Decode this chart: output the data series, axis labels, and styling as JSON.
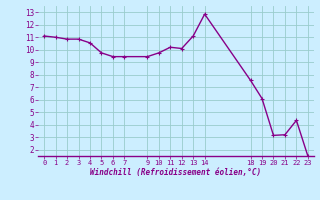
{
  "x": [
    0,
    1,
    2,
    3,
    4,
    5,
    6,
    7,
    9,
    10,
    11,
    12,
    13,
    14,
    18,
    19,
    20,
    21,
    22,
    23
  ],
  "y": [
    11.1,
    11.0,
    10.85,
    10.85,
    10.55,
    9.75,
    9.45,
    9.45,
    9.45,
    9.75,
    10.2,
    10.1,
    11.1,
    12.85,
    7.55,
    6.1,
    3.15,
    3.2,
    4.35,
    1.5
  ],
  "line_color": "#880088",
  "bg_color": "#cceeff",
  "grid_color": "#99cccc",
  "xlabel": "Windchill (Refroidissement éolien,°C)",
  "xlabel_color": "#880088",
  "tick_color": "#880088",
  "ylim": [
    1.5,
    13.5
  ],
  "xlim": [
    -0.5,
    23.5
  ],
  "yticks": [
    2,
    3,
    4,
    5,
    6,
    7,
    8,
    9,
    10,
    11,
    12,
    13
  ],
  "xticks": [
    0,
    1,
    2,
    3,
    4,
    5,
    6,
    7,
    9,
    10,
    11,
    12,
    13,
    14,
    18,
    19,
    20,
    21,
    22,
    23
  ],
  "marker_size": 3,
  "linewidth": 1.0
}
